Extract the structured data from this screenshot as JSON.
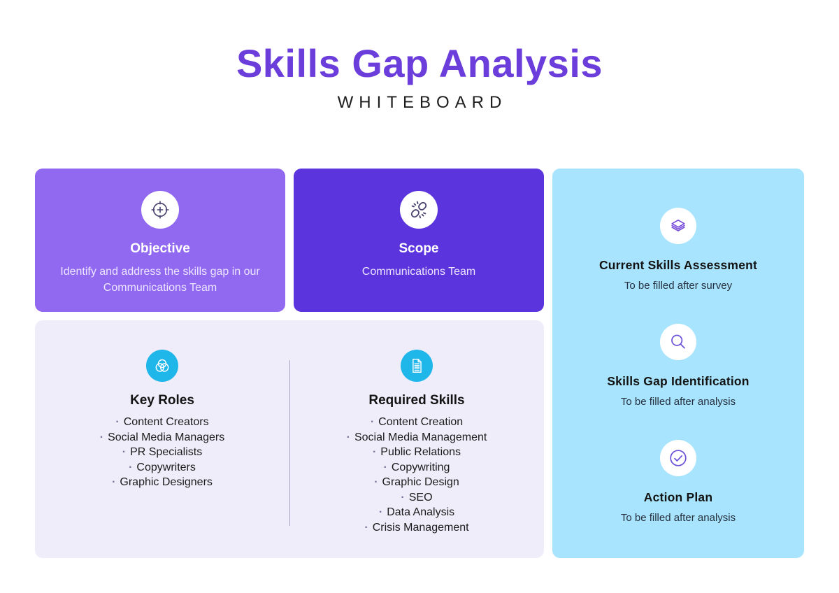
{
  "page": {
    "title": "Skills Gap Analysis",
    "subtitle": "WHITEBOARD"
  },
  "colors": {
    "title_color": "#6b3ddb",
    "objective_card": "#9168f0",
    "scope_card": "#5c34dd",
    "assessment_card": "#a8e4fd",
    "roles_card": "#f0edfa",
    "icon_circle_cyan": "#1fb6ea",
    "icon_stroke_dark": "#45406e",
    "icon_stroke_purple": "#6b4fd8"
  },
  "cards": {
    "objective": {
      "icon": "target-icon",
      "title": "Objective",
      "body": "Identify and address the skills gap in our Communications Team"
    },
    "scope": {
      "icon": "broken-link-icon",
      "title": "Scope",
      "body": "Communications Team"
    },
    "assessment": {
      "sections": [
        {
          "icon": "layers-icon",
          "title": "Current Skills Assessment",
          "body": "To be filled after survey"
        },
        {
          "icon": "magnifier-icon",
          "title": "Skills Gap Identification",
          "body": "To be filled after analysis"
        },
        {
          "icon": "check-circle-icon",
          "title": "Action Plan",
          "body": "To be filled after analysis"
        }
      ]
    },
    "roles_skills": {
      "key_roles": {
        "icon": "venn-diagram-icon",
        "title": "Key Roles",
        "items": [
          "Content Creators",
          "Social Media Managers",
          "PR Specialists",
          "Copywriters",
          "Graphic Designers"
        ]
      },
      "required_skills": {
        "icon": "document-icon",
        "title": "Required Skills",
        "items": [
          "Content Creation",
          "Social Media Management",
          "Public Relations",
          "Copywriting",
          "Graphic Design",
          "SEO",
          "Data Analysis",
          "Crisis Management"
        ]
      }
    }
  }
}
